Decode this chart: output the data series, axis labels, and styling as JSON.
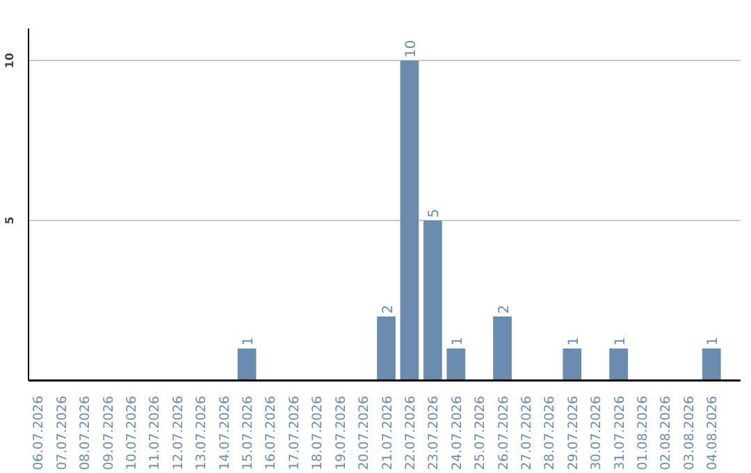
{
  "chart_data": {
    "type": "bar",
    "categories": [
      "06.07.2026",
      "07.07.2026",
      "08.07.2026",
      "09.07.2026",
      "10.07.2026",
      "11.07.2026",
      "12.07.2026",
      "13.07.2026",
      "14.07.2026",
      "15.07.2026",
      "16.07.2026",
      "17.07.2026",
      "18.07.2026",
      "19.07.2026",
      "20.07.2026",
      "21.07.2026",
      "22.07.2026",
      "23.07.2026",
      "24.07.2026",
      "25.07.2026",
      "26.07.2026",
      "27.07.2026",
      "28.07.2026",
      "29.07.2026",
      "30.07.2026",
      "31.07.2026",
      "01.08.2026",
      "02.08.2026",
      "03.08.2026",
      "04.08.2026"
    ],
    "values": [
      0,
      0,
      0,
      0,
      0,
      0,
      0,
      0,
      0,
      1,
      0,
      0,
      0,
      0,
      0,
      2,
      10,
      5,
      1,
      0,
      2,
      0,
      0,
      1,
      0,
      1,
      0,
      0,
      0,
      1
    ],
    "value_labels": [
      null,
      null,
      null,
      null,
      null,
      null,
      null,
      null,
      null,
      "1",
      null,
      null,
      null,
      null,
      null,
      "2",
      "10",
      "5",
      "1",
      null,
      "2",
      null,
      null,
      "1",
      null,
      "1",
      null,
      null,
      null,
      "1"
    ],
    "color": "#6a8caf",
    "ylim": [
      0,
      11
    ],
    "yticks": [
      5,
      10
    ],
    "grid": "y"
  }
}
